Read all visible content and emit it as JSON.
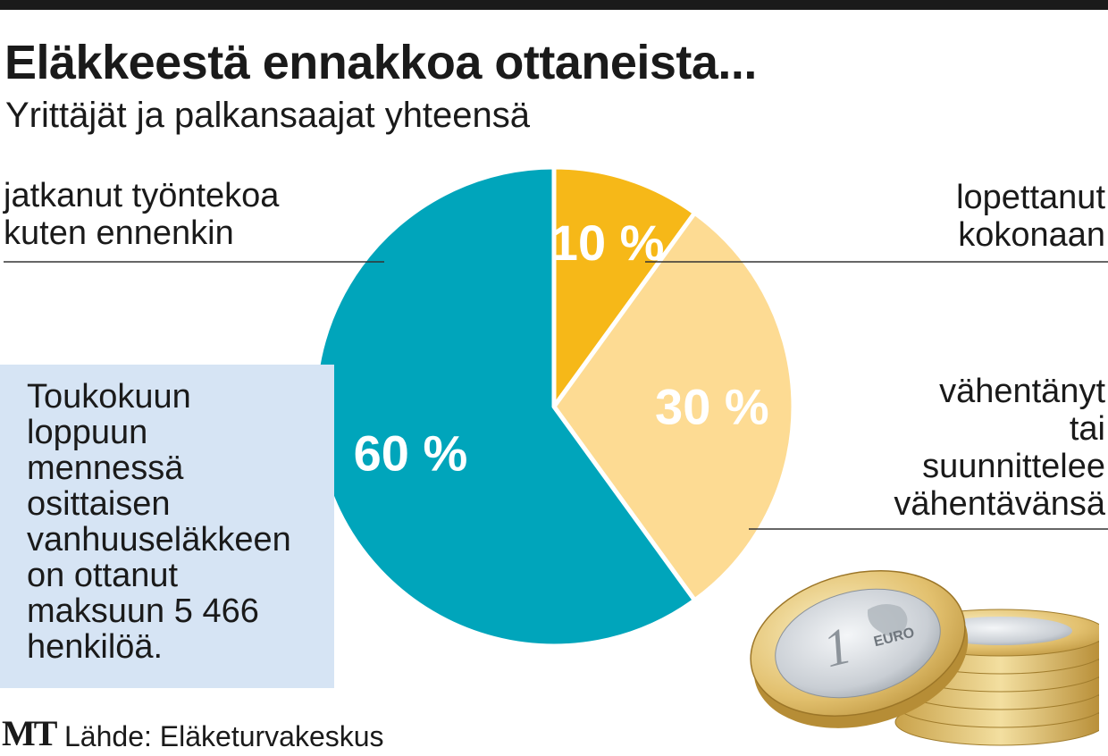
{
  "header": {
    "title": "Eläkkeestä ennakkoa ottaneista...",
    "subtitle": "Yrittäjät ja palkansaajat yhteensä"
  },
  "labels": {
    "continued": [
      "jatkanut työntekoa",
      "kuten ennenkin"
    ],
    "stopped": [
      "lopettanut",
      "kokonaan"
    ],
    "reduced": [
      "vähentänyt",
      "tai",
      "suunnittelee",
      "vähentävänsä"
    ]
  },
  "infobox": {
    "lines": [
      "Toukokuun",
      "loppuun",
      "mennessä",
      "osittaisen",
      "vanhuuseläkkeen",
      "on ottanut",
      "maksuun 5 466",
      "henkilöä."
    ]
  },
  "footer": {
    "logo": "MT",
    "source": "Lähde: Eläketurvakeskus"
  },
  "coin": {
    "value": "1",
    "text": "EURO"
  },
  "chart_data": {
    "type": "pie",
    "title": "Eläkkeestä ennakkoa ottaneista...",
    "subtitle": "Yrittäjät ja palkansaajat yhteensä",
    "slices": [
      {
        "label": "lopettanut kokonaan",
        "value": 10,
        "display": "10 %",
        "color": "#f6b818"
      },
      {
        "label": "vähentänyt tai suunnittelee vähentävänsä",
        "value": 30,
        "display": "30 %",
        "color": "#fddb93"
      },
      {
        "label": "jatkanut työntekoa kuten ennenkin",
        "value": 60,
        "display": "60 %",
        "color": "#00a5bb"
      }
    ],
    "start_angle": "12 o'clock",
    "direction": "clockwise",
    "unit": "%",
    "source": "Eläketurvakeskus"
  }
}
